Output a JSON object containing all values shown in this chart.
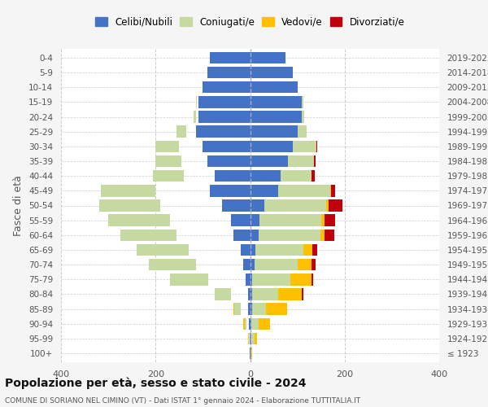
{
  "age_groups": [
    "100+",
    "95-99",
    "90-94",
    "85-89",
    "80-84",
    "75-79",
    "70-74",
    "65-69",
    "60-64",
    "55-59",
    "50-54",
    "45-49",
    "40-44",
    "35-39",
    "30-34",
    "25-29",
    "20-24",
    "15-19",
    "10-14",
    "5-9",
    "0-4"
  ],
  "birth_years": [
    "≤ 1923",
    "1924-1928",
    "1929-1933",
    "1934-1938",
    "1939-1943",
    "1944-1948",
    "1949-1953",
    "1954-1958",
    "1959-1963",
    "1964-1968",
    "1969-1973",
    "1974-1978",
    "1979-1983",
    "1984-1988",
    "1989-1993",
    "1994-1998",
    "1999-2003",
    "2004-2008",
    "2009-2013",
    "2014-2018",
    "2019-2023"
  ],
  "males": {
    "celibi": [
      1,
      1,
      2,
      4,
      5,
      9,
      15,
      20,
      35,
      40,
      60,
      85,
      75,
      90,
      100,
      115,
      110,
      110,
      100,
      90,
      85
    ],
    "coniugati": [
      0,
      1,
      5,
      15,
      35,
      80,
      100,
      110,
      120,
      130,
      130,
      115,
      65,
      55,
      50,
      20,
      5,
      2,
      0,
      0,
      0
    ],
    "vedovi": [
      0,
      1,
      4,
      8,
      10,
      8,
      8,
      5,
      5,
      4,
      3,
      1,
      0,
      0,
      0,
      2,
      0,
      0,
      0,
      0,
      0
    ],
    "divorziati": [
      0,
      0,
      0,
      0,
      3,
      6,
      8,
      12,
      16,
      22,
      28,
      10,
      8,
      6,
      4,
      0,
      0,
      0,
      0,
      0,
      0
    ]
  },
  "females": {
    "nubili": [
      1,
      1,
      3,
      4,
      5,
      5,
      10,
      12,
      18,
      20,
      30,
      60,
      65,
      80,
      90,
      100,
      110,
      110,
      100,
      90,
      75
    ],
    "coniugate": [
      2,
      8,
      15,
      30,
      55,
      80,
      90,
      100,
      130,
      130,
      130,
      110,
      65,
      55,
      50,
      20,
      5,
      2,
      0,
      0,
      0
    ],
    "vedove": [
      2,
      5,
      25,
      45,
      50,
      45,
      30,
      20,
      10,
      8,
      6,
      2,
      0,
      0,
      0,
      0,
      0,
      0,
      0,
      0,
      0
    ],
    "divorziate": [
      0,
      0,
      0,
      0,
      2,
      4,
      8,
      10,
      20,
      22,
      30,
      8,
      6,
      4,
      2,
      0,
      0,
      0,
      0,
      0,
      0
    ]
  },
  "colors": {
    "celibi": "#4472c4",
    "coniugati": "#c5d9a0",
    "vedovi": "#ffc000",
    "divorziati": "#c0000b"
  },
  "title": "Popolazione per età, sesso e stato civile - 2024",
  "subtitle": "COMUNE DI SORIANO NEL CIMINO (VT) - Dati ISTAT 1° gennaio 2024 - Elaborazione TUTTITALIA.IT",
  "ylabel_left": "Fasce di età",
  "xlim": 400,
  "legend_labels": [
    "Celibi/Nubili",
    "Coniugati/e",
    "Vedovi/e",
    "Divorziati/e"
  ],
  "bg_color": "#f5f5f5",
  "plot_bg_color": "#ffffff"
}
